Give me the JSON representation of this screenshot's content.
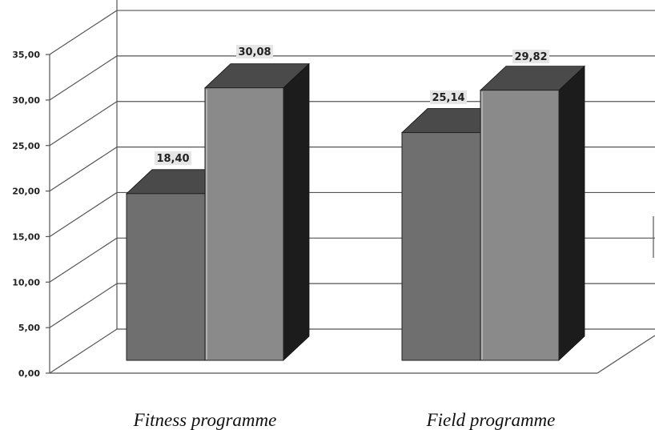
{
  "chart_data": {
    "type": "bar",
    "categories": [
      "Fitness programme",
      "Field programme"
    ],
    "series": [
      {
        "values": [
          18.4,
          25.14
        ],
        "color": "#6f6f6f",
        "top_color": "#4a4a4a",
        "side_color": "#1c1c1c"
      },
      {
        "values": [
          30.08,
          29.82
        ],
        "color": "#8a8a8a",
        "top_color": "#4a4a4a",
        "side_color": "#1c1c1c"
      }
    ],
    "data_labels": [
      [
        "18,40",
        "25,14"
      ],
      [
        "30,08",
        "29,82"
      ]
    ],
    "ylim": [
      0,
      35
    ],
    "yticks": [
      "0,00",
      "5,00",
      "10,00",
      "15,00",
      "20,00",
      "25,00",
      "30,00",
      "35,00"
    ],
    "grid": true,
    "style": "3d"
  }
}
